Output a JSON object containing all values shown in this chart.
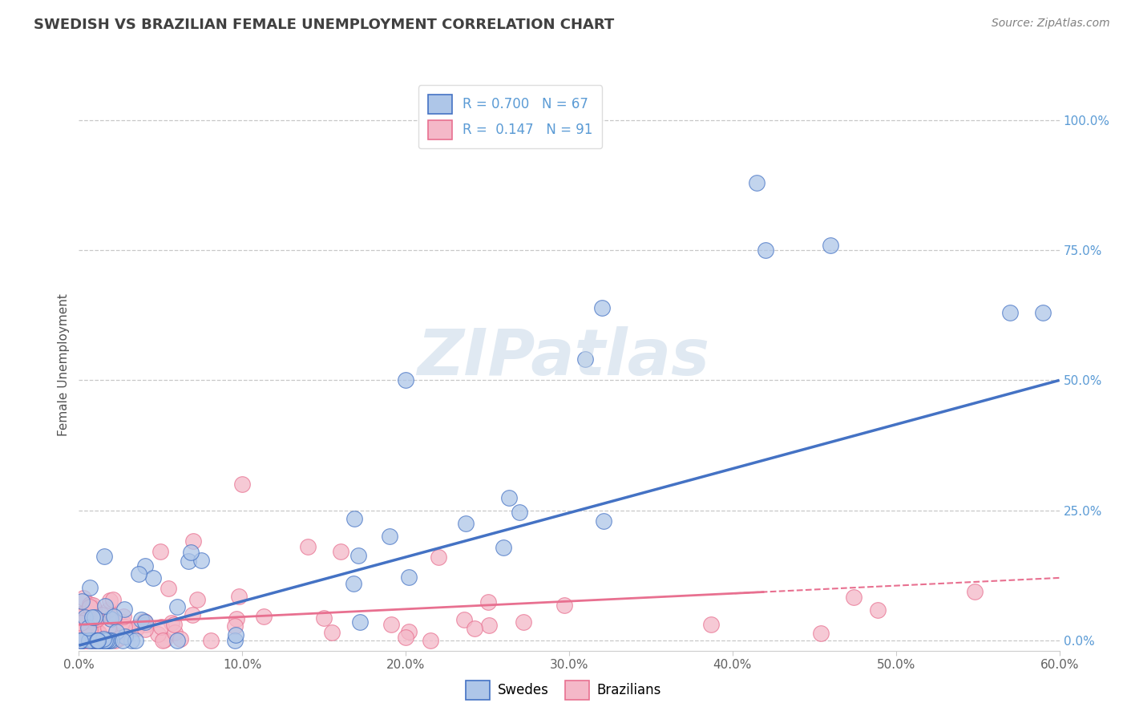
{
  "title": "SWEDISH VS BRAZILIAN FEMALE UNEMPLOYMENT CORRELATION CHART",
  "source": "Source: ZipAtlas.com",
  "ylabel": "Female Unemployment",
  "right_yticks": [
    "0.0%",
    "25.0%",
    "50.0%",
    "75.0%",
    "100.0%"
  ],
  "right_ytick_vals": [
    0.0,
    0.25,
    0.5,
    0.75,
    1.0
  ],
  "xmin": 0.0,
  "xmax": 0.6,
  "ymin": -0.02,
  "ymax": 1.08,
  "legend_r_blue": "R = 0.700",
  "legend_n_blue": "N = 67",
  "legend_r_pink": "R =  0.147",
  "legend_n_pink": "N = 91",
  "swedes_color": "#aec6e8",
  "brazilians_color": "#f4b8c8",
  "line_blue": "#4472c4",
  "line_pink": "#e87090",
  "background_color": "#ffffff",
  "grid_color": "#c8c8c8",
  "title_color": "#404040",
  "source_color": "#808080",
  "tick_color": "#5b9bd5",
  "xtick_color": "#606060"
}
